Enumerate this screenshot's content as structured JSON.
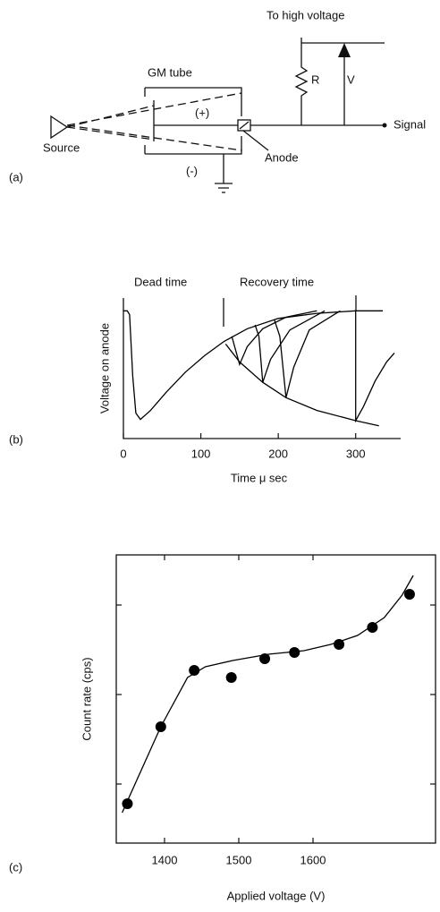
{
  "diagram": {
    "panel_label": "(a)",
    "high_voltage": "To high voltage",
    "tube": "GM tube",
    "resistor": "R",
    "voltage": "V",
    "plus": "(+)",
    "minus": "(-)",
    "source": "Source",
    "anode": "Anode",
    "signal": "Signal"
  },
  "chart_data": [
    {
      "type": "line",
      "panel_label": "(b)",
      "xlabel": "Time  μ sec",
      "ylabel": "Voltage on anode",
      "annotations": [
        "Dead time",
        "Recovery time"
      ],
      "xlim": [
        0,
        350
      ],
      "xticks": [
        0,
        100,
        200,
        300
      ],
      "ylim": [
        0,
        1.1
      ],
      "series": [
        {
          "color": "#000000",
          "x": [
            0,
            5,
            8,
            12,
            16,
            22,
            35,
            55,
            80,
            105,
            130,
            160,
            200,
            250,
            300,
            335
          ],
          "values": [
            1,
            1,
            0.97,
            0.49,
            0.2,
            0.15,
            0.22,
            0.36,
            0.52,
            0.65,
            0.76,
            0.86,
            0.94,
            0.98,
            1,
            1
          ]
        },
        {
          "color": "#000000",
          "x": [
            132,
            150,
            180,
            210,
            250,
            300,
            330
          ],
          "values": [
            0.74,
            0.6,
            0.44,
            0.32,
            0.22,
            0.14,
            0.1
          ]
        },
        {
          "color": "#000000",
          "x": [
            140,
            150,
            160,
            180,
            210,
            250
          ],
          "values": [
            0.8,
            0.58,
            0.72,
            0.86,
            0.95,
            1
          ]
        },
        {
          "color": "#000000",
          "x": [
            170,
            175,
            180,
            190,
            215,
            260
          ],
          "values": [
            0.89,
            0.8,
            0.44,
            0.62,
            0.85,
            1
          ]
        },
        {
          "color": "#000000",
          "x": [
            195,
            202,
            210,
            220,
            240,
            280
          ],
          "values": [
            0.93,
            0.8,
            0.32,
            0.56,
            0.85,
            1
          ]
        },
        {
          "color": "#000000",
          "x": [
            300,
            300,
            310,
            325,
            340,
            350
          ],
          "values": [
            1,
            0.14,
            0.25,
            0.45,
            0.6,
            0.67
          ]
        }
      ]
    },
    {
      "type": "scatter",
      "panel_label": "(c)",
      "xlabel": "Applied voltage (V)",
      "ylabel": "Count rate (cps)",
      "xlim": [
        1335,
        1765
      ],
      "xticks": [
        1400,
        1500,
        1600
      ],
      "ylim": [
        0.34,
        3.56
      ],
      "yticks": [
        1,
        2,
        3
      ],
      "ytick_labels": false,
      "color": "#000000",
      "x": [
        1350,
        1395,
        1440,
        1490,
        1535,
        1575,
        1635,
        1680,
        1730
      ],
      "values": [
        0.78,
        1.64,
        2.27,
        2.19,
        2.4,
        2.47,
        2.56,
        2.75,
        3.12
      ],
      "curve": {
        "x": [
          1343,
          1395,
          1431,
          1455,
          1492,
          1540,
          1588,
          1624,
          1660,
          1696,
          1720,
          1735
        ],
        "values": [
          0.68,
          1.64,
          2.19,
          2.31,
          2.38,
          2.45,
          2.49,
          2.56,
          2.66,
          2.86,
          3.11,
          3.33
        ]
      }
    }
  ]
}
